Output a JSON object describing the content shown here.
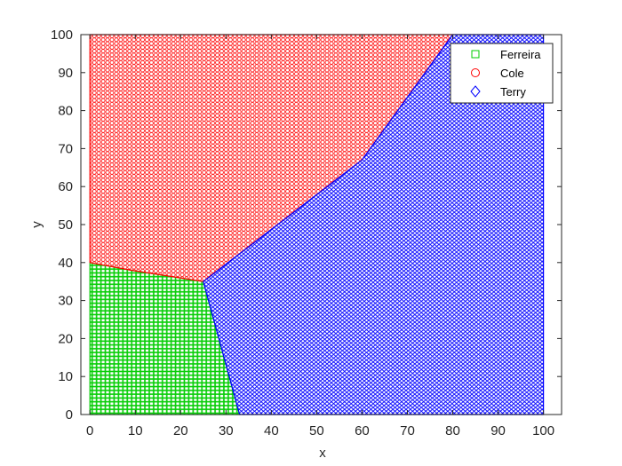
{
  "chart_data": {
    "type": "scatter",
    "title": "",
    "xlabel": "x",
    "ylabel": "y",
    "xlim": [
      -2,
      104
    ],
    "ylim": [
      0,
      100
    ],
    "xticks": [
      0,
      10,
      20,
      30,
      40,
      50,
      60,
      70,
      80,
      90,
      100
    ],
    "yticks": [
      0,
      10,
      20,
      30,
      40,
      50,
      60,
      70,
      80,
      90,
      100
    ],
    "grid": false,
    "legend_location": "top-right",
    "region_boundaries": {
      "cole_lower_edge": [
        [
          0,
          40
        ],
        [
          9,
          38
        ],
        [
          25,
          35
        ],
        [
          60,
          67
        ],
        [
          80,
          100
        ]
      ],
      "ferreira_right_edge": [
        [
          0,
          40
        ],
        [
          9,
          38
        ],
        [
          25,
          35
        ],
        [
          33,
          0
        ]
      ]
    },
    "series": [
      {
        "name": "Ferreira",
        "marker": "square",
        "color": "#00cc00",
        "region": [
          [
            0,
            0
          ],
          [
            33,
            0
          ],
          [
            25,
            35
          ],
          [
            9,
            38
          ],
          [
            0,
            40
          ]
        ]
      },
      {
        "name": "Cole",
        "marker": "circle",
        "color": "#ff0000",
        "region": [
          [
            0,
            40
          ],
          [
            9,
            38
          ],
          [
            25,
            35
          ],
          [
            60,
            67
          ],
          [
            80,
            100
          ],
          [
            0,
            100
          ]
        ]
      },
      {
        "name": "Terry",
        "marker": "diamond",
        "color": "#0000ff",
        "region": [
          [
            33,
            0
          ],
          [
            100,
            0
          ],
          [
            100,
            100
          ],
          [
            80,
            100
          ],
          [
            60,
            67
          ],
          [
            25,
            35
          ]
        ]
      }
    ]
  }
}
